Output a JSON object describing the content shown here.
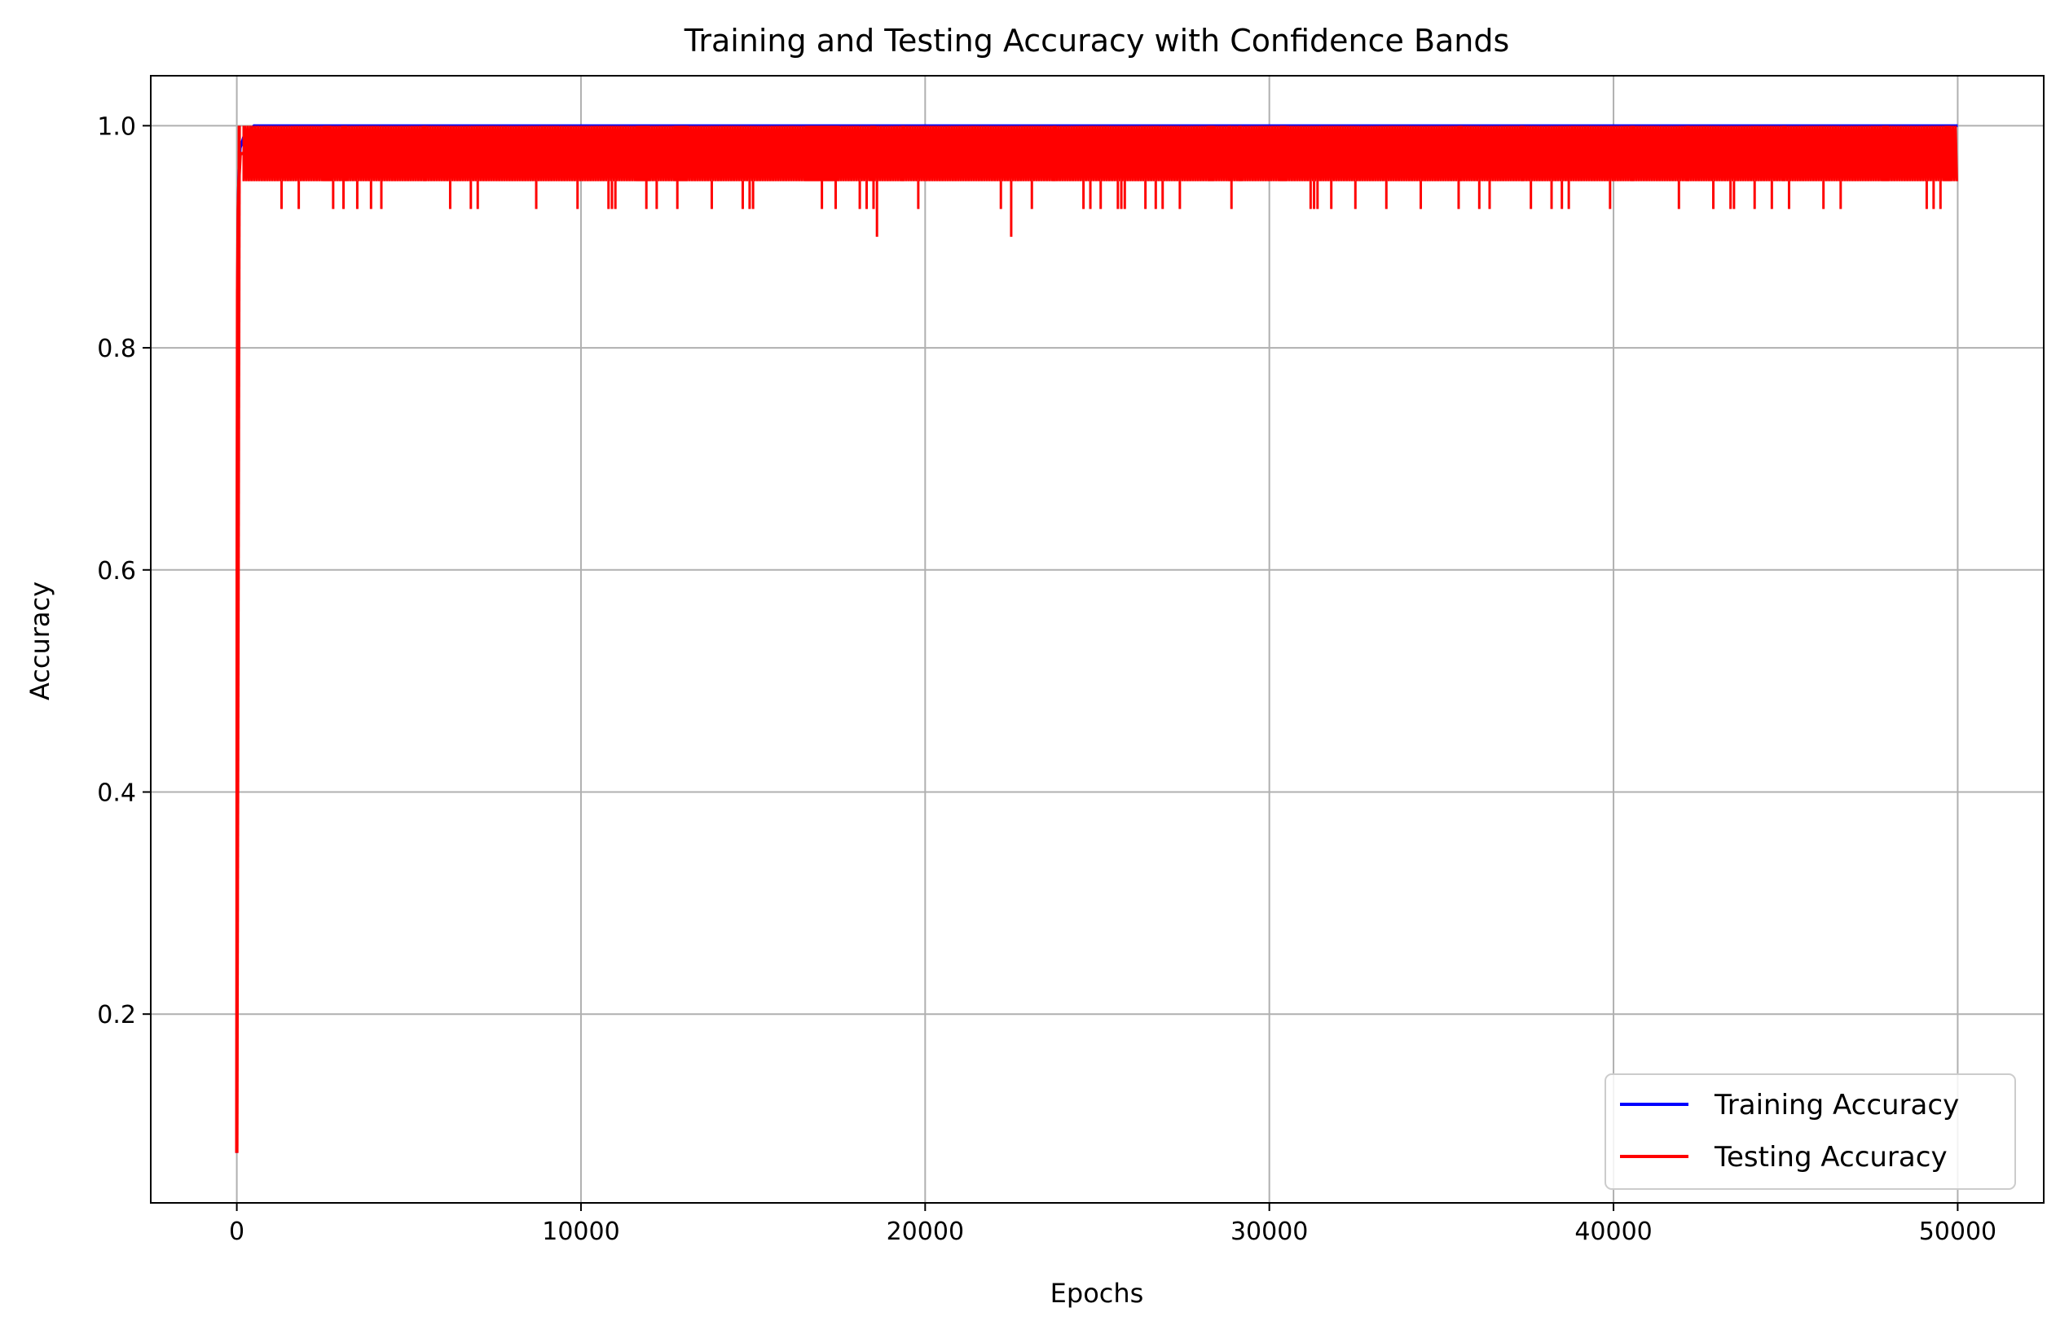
{
  "chart_data": {
    "type": "line",
    "title": "Training and Testing Accuracy with Confidence Bands",
    "xlabel": "Epochs",
    "ylabel": "Accuracy",
    "xlim": [
      -2500,
      52500
    ],
    "ylim": [
      0.03,
      1.045
    ],
    "grid": true,
    "legend_position": "bottom-right",
    "x_ticks": [
      0,
      10000,
      20000,
      30000,
      40000,
      50000
    ],
    "x_tick_labels": [
      "0",
      "10000",
      "20000",
      "30000",
      "40000",
      "50000"
    ],
    "y_ticks": [
      0.2,
      0.4,
      0.6,
      0.8,
      1.0
    ],
    "y_tick_labels": [
      "0.2",
      "0.4",
      "0.6",
      "0.8",
      "1.0"
    ],
    "series": [
      {
        "name": "Training Accuracy",
        "color": "#0000ff",
        "x": [
          0,
          5,
          10,
          20,
          40,
          60,
          100,
          200,
          500,
          1000,
          50000
        ],
        "values": [
          0.075,
          0.3,
          0.6,
          0.85,
          0.93,
          0.96,
          0.98,
          0.99,
          1.0,
          1.0,
          1.0
        ]
      },
      {
        "name": "Testing Accuracy",
        "color": "#ff0000",
        "x": [
          0,
          5,
          10,
          20,
          40,
          60,
          100,
          200,
          50000
        ],
        "values": [
          0.075,
          0.3,
          0.6,
          0.85,
          0.925,
          0.95,
          0.975,
          0.975,
          0.975
        ],
        "oscillation_range": [
          0.95,
          1.0
        ],
        "dip_to_0_925_at": [
          1300,
          1800,
          2800,
          3100,
          3500,
          3900,
          4200,
          6200,
          6800,
          7000,
          8700,
          9900,
          10800,
          10900,
          11000,
          11900,
          12200,
          12800,
          13800,
          14700,
          14900,
          15000,
          17000,
          17400,
          18100,
          18300,
          18500,
          19800,
          22200,
          23100,
          24600,
          24800,
          25100,
          25600,
          25700,
          25800,
          26400,
          26700,
          26900,
          27400,
          28900,
          31200,
          31300,
          31400,
          31800,
          32500,
          33400,
          34400,
          35500,
          36100,
          36400,
          37600,
          38200,
          38500,
          38700,
          39900,
          41900,
          42900,
          43400,
          43500,
          44100,
          44600,
          45100,
          46100,
          46600,
          49100,
          49300,
          49500
        ],
        "dip_to_0_9_at": [
          18600,
          22500
        ],
        "band_fill_segments": [
          [
            2500,
            2750
          ],
          [
            3050,
            3200
          ],
          [
            5400,
            5500
          ],
          [
            11600,
            12000
          ],
          [
            12700,
            13100
          ],
          [
            16500,
            17500
          ],
          [
            18400,
            18550
          ],
          [
            19300,
            19400
          ],
          [
            23700,
            23800
          ],
          [
            28200,
            28400
          ],
          [
            28800,
            28900
          ],
          [
            29100,
            29200
          ],
          [
            30300,
            30500
          ],
          [
            35500,
            35600
          ],
          [
            37300,
            37400
          ],
          [
            40500,
            40600
          ],
          [
            42100,
            42200
          ],
          [
            44900,
            45000
          ],
          [
            47800,
            48000
          ],
          [
            49600,
            49800
          ]
        ]
      }
    ]
  }
}
